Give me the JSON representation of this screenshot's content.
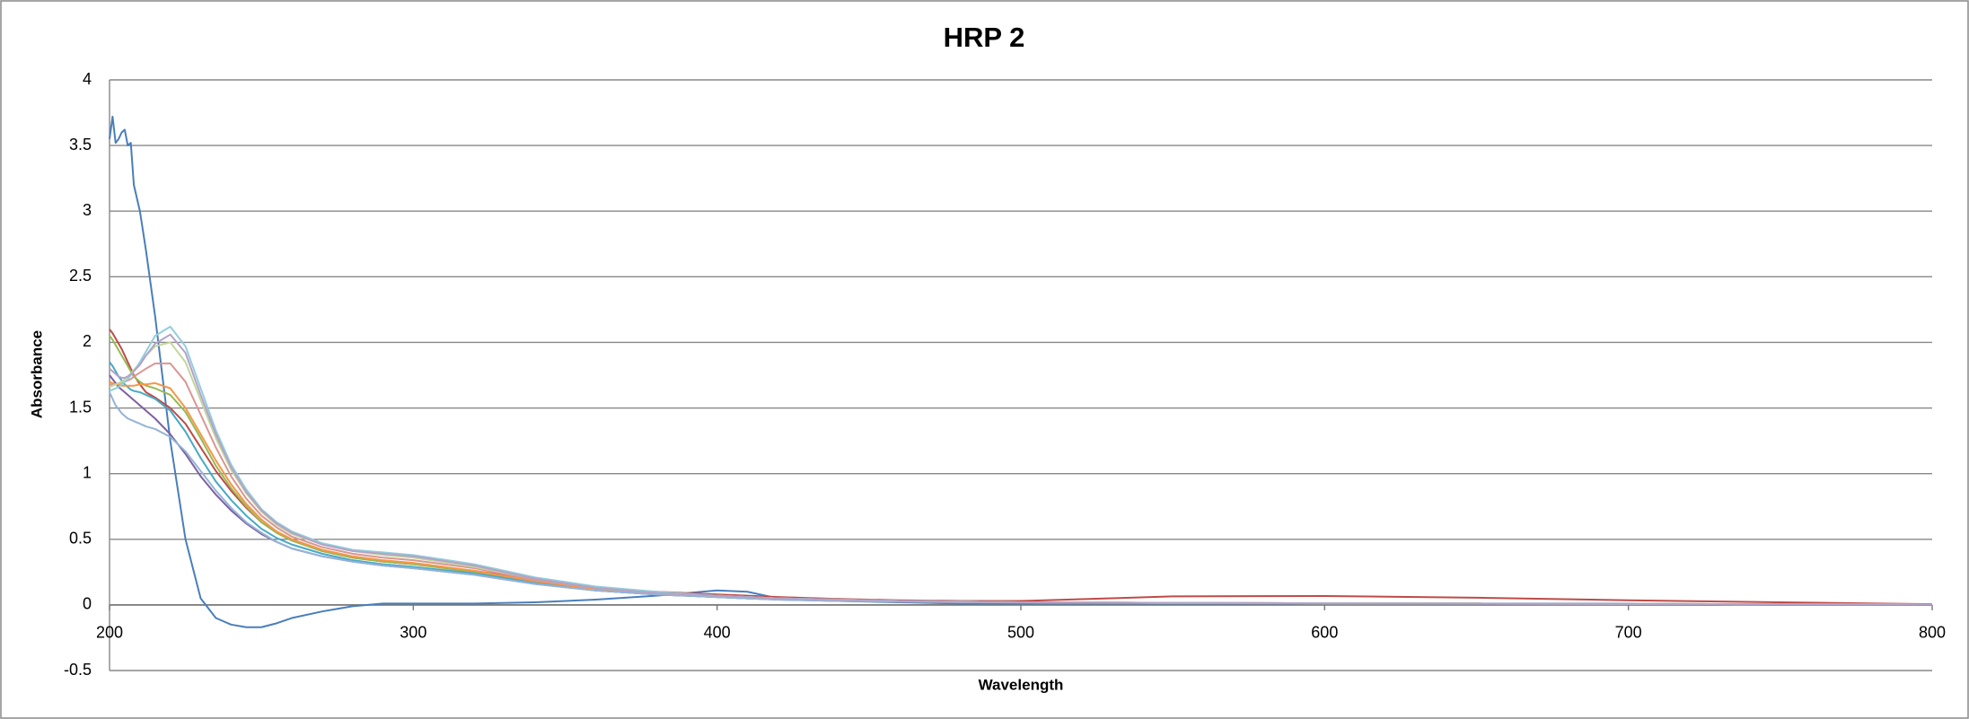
{
  "chart_data": {
    "type": "line",
    "title": "HRP 2",
    "x_label": "Wavelength",
    "y_label": "Absorbance",
    "x": [
      200,
      201,
      202,
      203,
      204,
      205,
      206,
      207,
      208,
      210,
      212,
      215,
      220,
      225,
      230,
      235,
      240,
      245,
      250,
      255,
      260,
      270,
      280,
      290,
      300,
      320,
      340,
      360,
      380,
      400,
      410,
      420,
      440,
      460,
      480,
      500,
      550,
      600,
      650,
      700,
      750,
      800
    ],
    "xlim": [
      200,
      800
    ],
    "xticks": [
      200,
      300,
      400,
      500,
      600,
      700,
      800
    ],
    "ylim": [
      -0.5,
      4
    ],
    "yticks": [
      -0.5,
      0,
      0.5,
      1,
      1.5,
      2,
      2.5,
      3,
      3.5,
      4
    ],
    "grid": true,
    "series": [
      {
        "color": "#4a7ebb",
        "values": [
          3.55,
          3.72,
          3.52,
          3.55,
          3.6,
          3.62,
          3.5,
          3.52,
          3.2,
          3.0,
          2.7,
          2.2,
          1.25,
          0.5,
          0.05,
          -0.1,
          -0.15,
          -0.17,
          -0.17,
          -0.14,
          -0.1,
          -0.05,
          -0.01,
          0.01,
          0.01,
          0.01,
          0.02,
          0.04,
          0.07,
          0.11,
          0.1,
          0.05,
          0.03,
          0.02,
          0.01,
          0.01,
          0.01,
          0.01,
          0.01,
          0.01,
          0.0,
          0.0
        ]
      },
      {
        "color": "#be4b48",
        "values": [
          2.1,
          2.07,
          2.03,
          1.99,
          1.95,
          1.9,
          1.85,
          1.8,
          1.75,
          1.68,
          1.62,
          1.58,
          1.5,
          1.38,
          1.2,
          1.02,
          0.87,
          0.74,
          0.63,
          0.55,
          0.49,
          0.41,
          0.36,
          0.33,
          0.31,
          0.26,
          0.19,
          0.13,
          0.1,
          0.08,
          0.07,
          0.06,
          0.045,
          0.035,
          0.03,
          0.03,
          0.065,
          0.068,
          0.055,
          0.035,
          0.02,
          0.005
        ]
      },
      {
        "color": "#98b954",
        "values": [
          2.05,
          2.02,
          1.98,
          1.94,
          1.9,
          1.86,
          1.82,
          1.78,
          1.74,
          1.7,
          1.67,
          1.65,
          1.6,
          1.47,
          1.27,
          1.06,
          0.89,
          0.75,
          0.63,
          0.55,
          0.49,
          0.41,
          0.36,
          0.33,
          0.31,
          0.25,
          0.17,
          0.12,
          0.08,
          0.06,
          0.05,
          0.045,
          0.035,
          0.03,
          0.025,
          0.02,
          0.015,
          0.012,
          0.01,
          0.008,
          0.005,
          0.003
        ]
      },
      {
        "color": "#7d60a0",
        "values": [
          1.75,
          1.72,
          1.69,
          1.66,
          1.64,
          1.62,
          1.6,
          1.58,
          1.56,
          1.52,
          1.48,
          1.42,
          1.3,
          1.15,
          0.98,
          0.84,
          0.72,
          0.62,
          0.54,
          0.48,
          0.43,
          0.37,
          0.33,
          0.3,
          0.28,
          0.23,
          0.16,
          0.11,
          0.08,
          0.06,
          0.05,
          0.04,
          0.03,
          0.025,
          0.02,
          0.018,
          0.014,
          0.011,
          0.009,
          0.007,
          0.005,
          0.003
        ]
      },
      {
        "color": "#46aac5",
        "values": [
          1.85,
          1.82,
          1.78,
          1.74,
          1.71,
          1.68,
          1.66,
          1.64,
          1.63,
          1.62,
          1.6,
          1.57,
          1.48,
          1.32,
          1.12,
          0.94,
          0.8,
          0.68,
          0.58,
          0.51,
          0.46,
          0.39,
          0.34,
          0.31,
          0.29,
          0.24,
          0.17,
          0.11,
          0.08,
          0.06,
          0.05,
          0.045,
          0.035,
          0.03,
          0.025,
          0.02,
          0.015,
          0.012,
          0.01,
          0.008,
          0.005,
          0.003
        ]
      },
      {
        "color": "#f79646",
        "values": [
          1.7,
          1.69,
          1.68,
          1.68,
          1.67,
          1.67,
          1.67,
          1.67,
          1.67,
          1.68,
          1.68,
          1.69,
          1.65,
          1.5,
          1.3,
          1.1,
          0.92,
          0.77,
          0.65,
          0.56,
          0.5,
          0.42,
          0.37,
          0.34,
          0.32,
          0.26,
          0.18,
          0.12,
          0.09,
          0.065,
          0.055,
          0.05,
          0.04,
          0.03,
          0.025,
          0.02,
          0.015,
          0.012,
          0.01,
          0.008,
          0.005,
          0.003
        ]
      },
      {
        "color": "#95b3d7",
        "values": [
          1.62,
          1.57,
          1.52,
          1.49,
          1.46,
          1.44,
          1.42,
          1.41,
          1.4,
          1.38,
          1.36,
          1.34,
          1.28,
          1.17,
          1.02,
          0.87,
          0.74,
          0.63,
          0.55,
          0.48,
          0.43,
          0.37,
          0.33,
          0.3,
          0.28,
          0.23,
          0.16,
          0.11,
          0.08,
          0.06,
          0.05,
          0.04,
          0.03,
          0.025,
          0.02,
          0.018,
          0.014,
          0.011,
          0.009,
          0.007,
          0.005,
          0.003
        ]
      },
      {
        "color": "#d99694",
        "values": [
          1.68,
          1.68,
          1.68,
          1.69,
          1.69,
          1.7,
          1.71,
          1.72,
          1.74,
          1.77,
          1.8,
          1.84,
          1.84,
          1.7,
          1.45,
          1.2,
          0.98,
          0.81,
          0.68,
          0.59,
          0.52,
          0.44,
          0.39,
          0.36,
          0.34,
          0.28,
          0.19,
          0.13,
          0.09,
          0.07,
          0.06,
          0.05,
          0.04,
          0.03,
          0.025,
          0.02,
          0.015,
          0.012,
          0.01,
          0.008,
          0.005,
          0.003
        ]
      },
      {
        "color": "#c3d69b",
        "values": [
          1.66,
          1.67,
          1.68,
          1.69,
          1.7,
          1.72,
          1.74,
          1.76,
          1.79,
          1.84,
          1.9,
          1.97,
          2.0,
          1.85,
          1.56,
          1.27,
          1.03,
          0.85,
          0.71,
          0.61,
          0.54,
          0.46,
          0.41,
          0.38,
          0.36,
          0.29,
          0.2,
          0.13,
          0.09,
          0.07,
          0.06,
          0.05,
          0.04,
          0.03,
          0.025,
          0.02,
          0.015,
          0.012,
          0.01,
          0.008,
          0.005,
          0.003
        ]
      },
      {
        "color": "#93cddd",
        "values": [
          1.63,
          1.64,
          1.65,
          1.66,
          1.68,
          1.7,
          1.72,
          1.75,
          1.78,
          1.85,
          1.93,
          2.05,
          2.12,
          1.97,
          1.65,
          1.33,
          1.07,
          0.88,
          0.73,
          0.63,
          0.56,
          0.47,
          0.42,
          0.4,
          0.38,
          0.31,
          0.21,
          0.14,
          0.1,
          0.07,
          0.06,
          0.05,
          0.04,
          0.03,
          0.025,
          0.02,
          0.015,
          0.012,
          0.01,
          0.008,
          0.005,
          0.003
        ]
      },
      {
        "color": "#b3a2c7",
        "values": [
          1.8,
          1.78,
          1.76,
          1.74,
          1.73,
          1.73,
          1.74,
          1.76,
          1.78,
          1.83,
          1.9,
          1.99,
          2.06,
          1.92,
          1.6,
          1.3,
          1.05,
          0.86,
          0.72,
          0.62,
          0.55,
          0.46,
          0.41,
          0.39,
          0.37,
          0.3,
          0.2,
          0.13,
          0.09,
          0.07,
          0.06,
          0.05,
          0.04,
          0.03,
          0.025,
          0.02,
          0.015,
          0.012,
          0.01,
          0.008,
          0.005,
          0.003
        ]
      }
    ]
  }
}
